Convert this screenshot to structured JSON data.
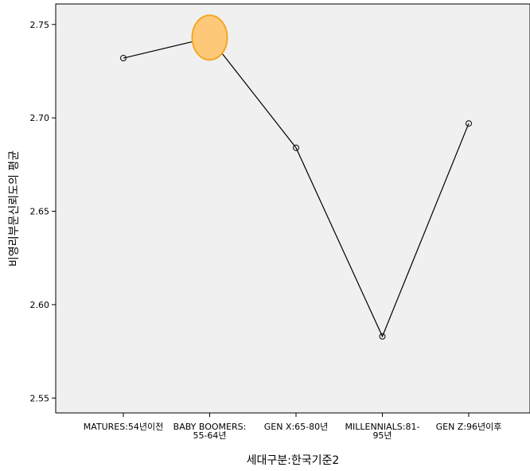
{
  "chart_data": {
    "type": "line",
    "title": "",
    "xlabel": "세대구분:한국기준2",
    "ylabel": "비영리부문신뢰도의 평균",
    "categories": [
      [
        "MATURES:54년이전"
      ],
      [
        "BABY BOOMERS:",
        "55-64년"
      ],
      [
        "GEN X:65-80년"
      ],
      [
        "MILLENNIALS:81-",
        "95년"
      ],
      [
        "GEN Z:96년이후"
      ]
    ],
    "series": [
      {
        "values": [
          2.732,
          2.743,
          2.684,
          2.583,
          2.697
        ]
      }
    ],
    "ylim": [
      2.545,
      2.758
    ],
    "yticks": [
      2.55,
      2.6,
      2.65,
      2.7,
      2.75
    ],
    "ytick_labels": [
      "2.55",
      "2.60",
      "2.65",
      "2.70",
      "2.75"
    ],
    "highlight_index": 1,
    "colors": {
      "plot_background": "#f0f0f0",
      "line": "#000000",
      "highlight_fill": "#fdc979",
      "highlight_stroke": "#f5a623"
    },
    "grid": false,
    "legend": "none"
  }
}
